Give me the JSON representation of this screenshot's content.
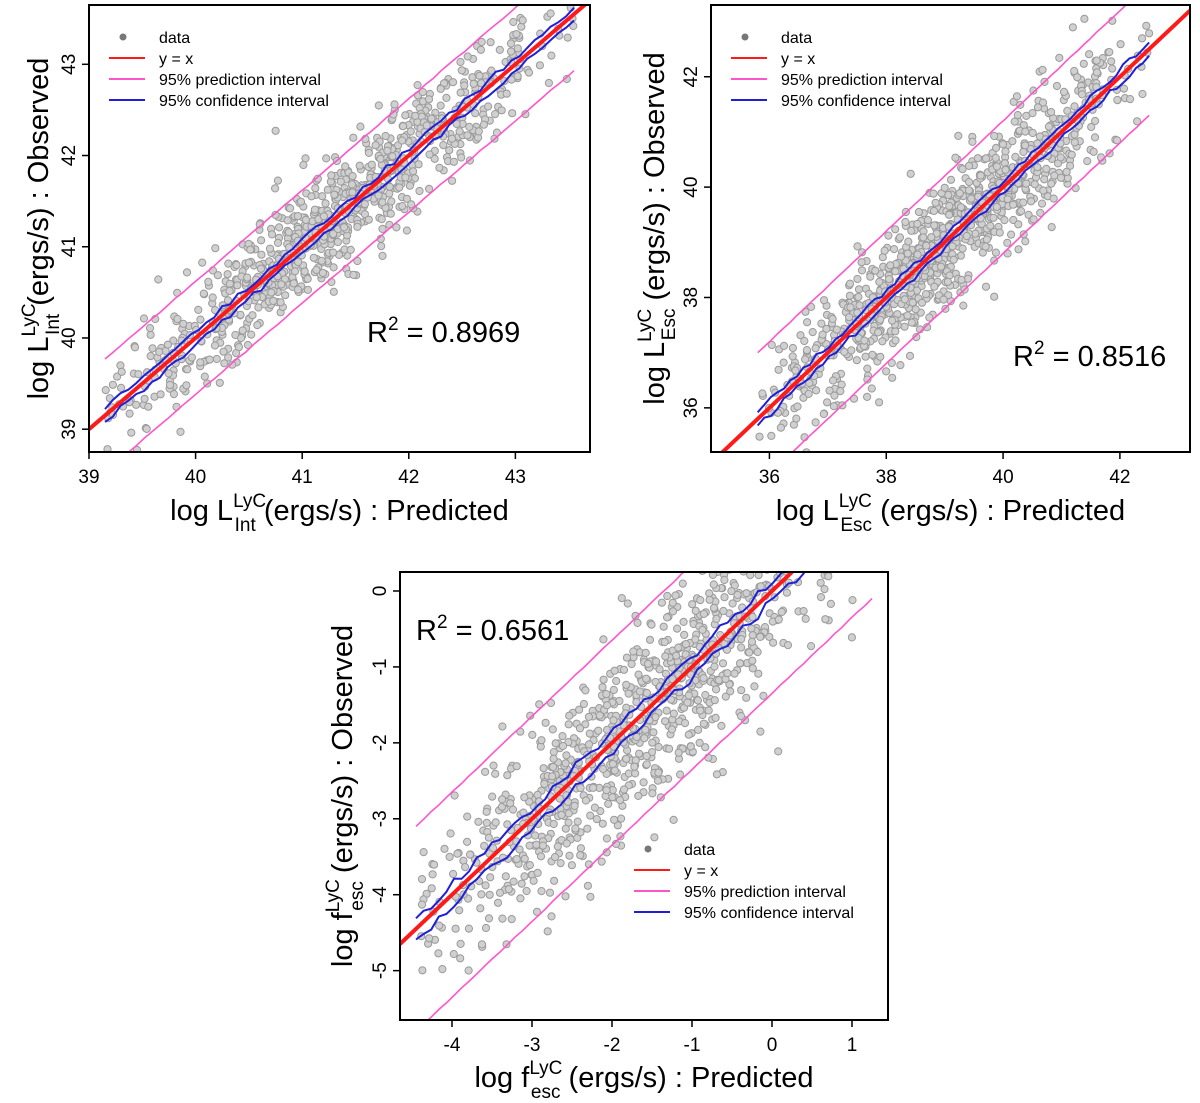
{
  "chart_data": [
    {
      "id": "p1",
      "type": "scatter",
      "xlim": [
        39.0,
        43.7
      ],
      "ylim": [
        38.75,
        43.65
      ],
      "xticks": [
        "39",
        "40",
        "41",
        "42",
        "43"
      ],
      "yticks": [
        "39",
        "40",
        "41",
        "42",
        "43"
      ],
      "xlabel": {
        "pre": "log L",
        "sup": "LyC",
        "sub": "Int",
        "post": " (ergs/s) : Predicted"
      },
      "ylabel": {
        "pre": "log L",
        "sup": "LyC",
        "sub": "Int",
        "post": " (ergs/s) : Observed"
      },
      "r2": {
        "label": "R",
        "sup": "2",
        "value": " = 0.8969"
      },
      "legend": {
        "position": "top-left",
        "entries": [
          "data",
          "y = x",
          "95% prediction interval",
          "95% confidence interval"
        ]
      },
      "series": [
        {
          "name": "data",
          "kind": "points",
          "color": "#9a9a9a",
          "fill": "#d0d0d0",
          "n_points": 900,
          "x_range": [
            39.15,
            43.55
          ],
          "scatter_sd": 0.32
        },
        {
          "name": "y = x",
          "kind": "line",
          "color": "#ff1a1a",
          "from": [
            39.0,
            39.0
          ],
          "to": [
            43.7,
            43.7
          ]
        },
        {
          "name": "95% prediction interval",
          "kind": "band",
          "color": "#ff55cc",
          "halfwidth": 0.62,
          "x_range": [
            39.15,
            43.55
          ]
        },
        {
          "name": "95% confidence interval",
          "kind": "band",
          "color": "#1f1fd8",
          "halfwidth": 0.07,
          "x_range": [
            39.15,
            43.55
          ]
        }
      ]
    },
    {
      "id": "p2",
      "type": "scatter",
      "xlim": [
        35.0,
        43.2
      ],
      "ylim": [
        35.2,
        43.3
      ],
      "xticks": [
        "36",
        "38",
        "40",
        "42"
      ],
      "yticks": [
        "36",
        "38",
        "40",
        "42"
      ],
      "xlabel": {
        "pre": "log L",
        "sup": "LyC",
        "sub": "Esc",
        "post": " (ergs/s) : Predicted"
      },
      "ylabel": {
        "pre": "log L",
        "sup": "LyC",
        "sub": "Esc",
        "post": " (ergs/s) : Observed"
      },
      "r2": {
        "label": "R",
        "sup": "2",
        "value": " = 0.8516"
      },
      "legend": {
        "position": "top-left",
        "entries": [
          "data",
          "y = x",
          "95% prediction interval",
          "95% confidence interval"
        ]
      },
      "series": [
        {
          "name": "data",
          "kind": "points",
          "color": "#9a9a9a",
          "fill": "#d0d0d0",
          "n_points": 1000,
          "x_range": [
            35.8,
            42.5
          ],
          "scatter_sd": 0.58
        },
        {
          "name": "y = x",
          "kind": "line",
          "color": "#ff1a1a",
          "from": [
            35.0,
            35.0
          ],
          "to": [
            43.2,
            43.2
          ]
        },
        {
          "name": "95% prediction interval",
          "kind": "band",
          "color": "#ff55cc",
          "halfwidth": 1.2,
          "x_range": [
            35.8,
            42.5
          ]
        },
        {
          "name": "95% confidence interval",
          "kind": "band",
          "color": "#1f1fd8",
          "halfwidth": 0.12,
          "x_range": [
            35.8,
            42.5
          ]
        }
      ]
    },
    {
      "id": "p3",
      "type": "scatter",
      "xlim": [
        -4.65,
        1.45
      ],
      "ylim": [
        -5.65,
        0.25
      ],
      "xticks": [
        "-4",
        "-3",
        "-2",
        "-1",
        "0",
        "1"
      ],
      "yticks": [
        "-5",
        "-4",
        "-3",
        "-2",
        "-1",
        "0"
      ],
      "xlabel": {
        "pre": "log f",
        "sup": "LyC",
        "sub": "esc",
        "post": " (ergs/s) : Predicted"
      },
      "ylabel": {
        "pre": "log f",
        "sup": "LyC",
        "sub": "esc",
        "post": " (ergs/s) : Observed"
      },
      "r2": {
        "label": "R",
        "sup": "2",
        "value": " = 0.6561"
      },
      "legend": {
        "position": "bottom-right",
        "entries": [
          "data",
          "y = x",
          "95% prediction interval",
          "95% confidence interval"
        ]
      },
      "series": [
        {
          "name": "data",
          "kind": "points",
          "color": "#9a9a9a",
          "fill": "#d0d0d0",
          "n_points": 1000,
          "x_range": [
            -4.45,
            1.25
          ],
          "scatter_sd": 0.62
        },
        {
          "name": "y = x",
          "kind": "line",
          "color": "#ff1a1a",
          "from": [
            -4.65,
            -4.65
          ],
          "to": [
            0.25,
            0.25
          ]
        },
        {
          "name": "95% prediction interval",
          "kind": "band",
          "color": "#ff55cc",
          "halfwidth": 1.35,
          "x_range": [
            -4.45,
            1.25
          ]
        },
        {
          "name": "95% confidence interval",
          "kind": "band",
          "color": "#1f1fd8",
          "halfwidth": 0.14,
          "x_range": [
            -4.45,
            1.25
          ]
        }
      ]
    }
  ]
}
